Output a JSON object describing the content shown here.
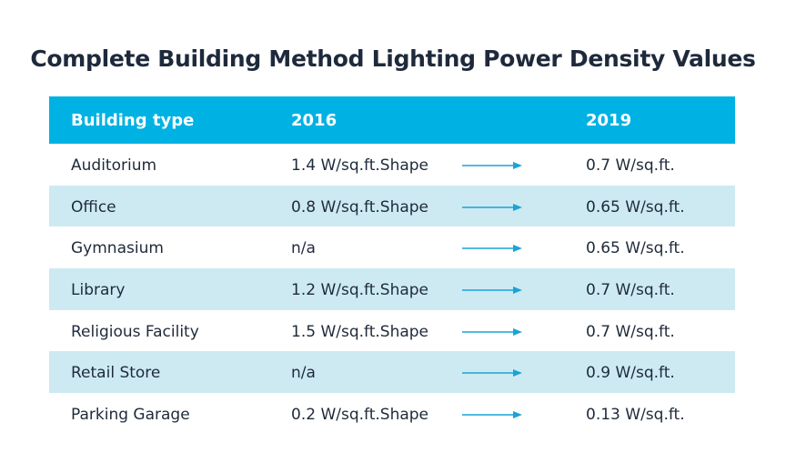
{
  "title": "Complete Building Method Lighting Power Density Values",
  "colors": {
    "header_bg": "#00b2e3",
    "alt_row_bg": "#cdeaf3",
    "arrow": "#1aa3d6",
    "title": "#1e2a3c"
  },
  "table": {
    "headers": [
      "Building type",
      "2016",
      "2019"
    ],
    "rows": [
      {
        "type": "Auditorium",
        "y2016": "1.4 W/sq.ft.Shape",
        "y2019": "0.7 W/sq.ft."
      },
      {
        "type": "Office",
        "y2016": "0.8 W/sq.ft.Shape",
        "y2019": "0.65 W/sq.ft."
      },
      {
        "type": "Gymnasium",
        "y2016": "n/a",
        "y2019": "0.65 W/sq.ft."
      },
      {
        "type": "Library",
        "y2016": "1.2 W/sq.ft.Shape",
        "y2019": "0.7 W/sq.ft."
      },
      {
        "type": "Religious Facility",
        "y2016": "1.5 W/sq.ft.Shape",
        "y2019": "0.7 W/sq.ft."
      },
      {
        "type": "Retail Store",
        "y2016": "n/a",
        "y2019": "0.9 W/sq.ft."
      },
      {
        "type": "Parking Garage",
        "y2016": "0.2 W/sq.ft.Shape",
        "y2019": "0.13 W/sq.ft."
      }
    ],
    "arrow_icon": "arrow-right-icon"
  }
}
